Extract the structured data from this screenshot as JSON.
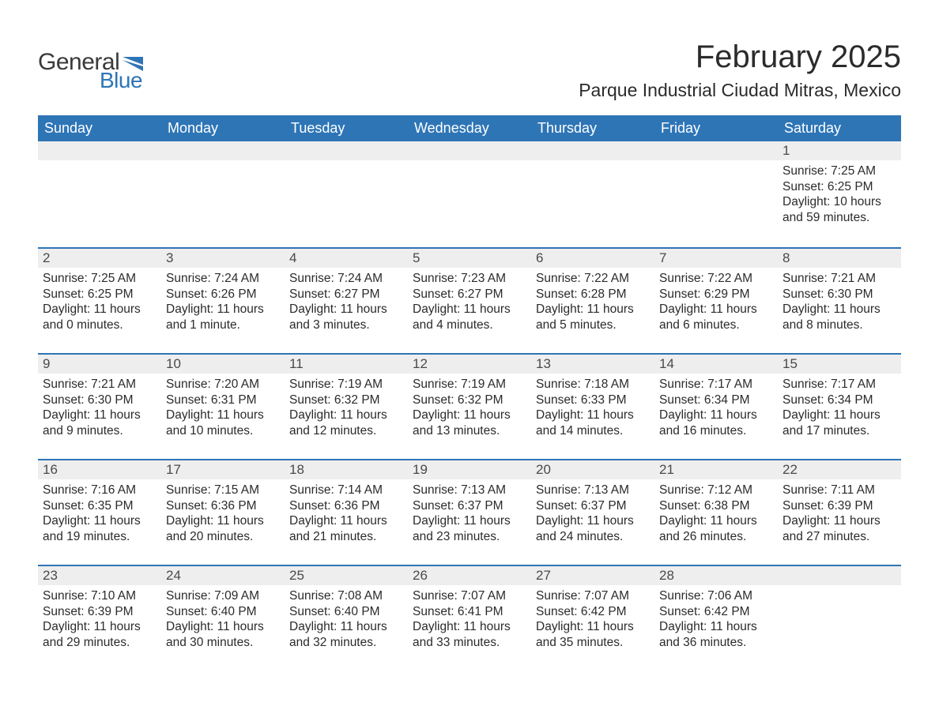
{
  "logo": {
    "text1": "General",
    "text2": "Blue",
    "text1_color": "#3a3a3a",
    "text2_color": "#2e75b6",
    "icon_color": "#2e75b6"
  },
  "header": {
    "month_title": "February 2025",
    "location": "Parque Industrial Ciudad Mitras, Mexico"
  },
  "colors": {
    "header_bg": "#2e75b6",
    "header_text": "#ffffff",
    "row_border": "#2e75b6",
    "daybar_bg": "#eeeeee",
    "text": "#2b2b2b",
    "background": "#ffffff"
  },
  "typography": {
    "title_fontsize": 40,
    "location_fontsize": 23,
    "weekday_fontsize": 18,
    "cell_fontsize": 15.5,
    "font_family": "Segoe UI"
  },
  "weekdays": [
    "Sunday",
    "Monday",
    "Tuesday",
    "Wednesday",
    "Thursday",
    "Friday",
    "Saturday"
  ],
  "weeks": [
    [
      null,
      null,
      null,
      null,
      null,
      null,
      {
        "day": "1",
        "sunrise": "Sunrise: 7:25 AM",
        "sunset": "Sunset: 6:25 PM",
        "daylight": "Daylight: 10 hours and 59 minutes."
      }
    ],
    [
      {
        "day": "2",
        "sunrise": "Sunrise: 7:25 AM",
        "sunset": "Sunset: 6:25 PM",
        "daylight": "Daylight: 11 hours and 0 minutes."
      },
      {
        "day": "3",
        "sunrise": "Sunrise: 7:24 AM",
        "sunset": "Sunset: 6:26 PM",
        "daylight": "Daylight: 11 hours and 1 minute."
      },
      {
        "day": "4",
        "sunrise": "Sunrise: 7:24 AM",
        "sunset": "Sunset: 6:27 PM",
        "daylight": "Daylight: 11 hours and 3 minutes."
      },
      {
        "day": "5",
        "sunrise": "Sunrise: 7:23 AM",
        "sunset": "Sunset: 6:27 PM",
        "daylight": "Daylight: 11 hours and 4 minutes."
      },
      {
        "day": "6",
        "sunrise": "Sunrise: 7:22 AM",
        "sunset": "Sunset: 6:28 PM",
        "daylight": "Daylight: 11 hours and 5 minutes."
      },
      {
        "day": "7",
        "sunrise": "Sunrise: 7:22 AM",
        "sunset": "Sunset: 6:29 PM",
        "daylight": "Daylight: 11 hours and 6 minutes."
      },
      {
        "day": "8",
        "sunrise": "Sunrise: 7:21 AM",
        "sunset": "Sunset: 6:30 PM",
        "daylight": "Daylight: 11 hours and 8 minutes."
      }
    ],
    [
      {
        "day": "9",
        "sunrise": "Sunrise: 7:21 AM",
        "sunset": "Sunset: 6:30 PM",
        "daylight": "Daylight: 11 hours and 9 minutes."
      },
      {
        "day": "10",
        "sunrise": "Sunrise: 7:20 AM",
        "sunset": "Sunset: 6:31 PM",
        "daylight": "Daylight: 11 hours and 10 minutes."
      },
      {
        "day": "11",
        "sunrise": "Sunrise: 7:19 AM",
        "sunset": "Sunset: 6:32 PM",
        "daylight": "Daylight: 11 hours and 12 minutes."
      },
      {
        "day": "12",
        "sunrise": "Sunrise: 7:19 AM",
        "sunset": "Sunset: 6:32 PM",
        "daylight": "Daylight: 11 hours and 13 minutes."
      },
      {
        "day": "13",
        "sunrise": "Sunrise: 7:18 AM",
        "sunset": "Sunset: 6:33 PM",
        "daylight": "Daylight: 11 hours and 14 minutes."
      },
      {
        "day": "14",
        "sunrise": "Sunrise: 7:17 AM",
        "sunset": "Sunset: 6:34 PM",
        "daylight": "Daylight: 11 hours and 16 minutes."
      },
      {
        "day": "15",
        "sunrise": "Sunrise: 7:17 AM",
        "sunset": "Sunset: 6:34 PM",
        "daylight": "Daylight: 11 hours and 17 minutes."
      }
    ],
    [
      {
        "day": "16",
        "sunrise": "Sunrise: 7:16 AM",
        "sunset": "Sunset: 6:35 PM",
        "daylight": "Daylight: 11 hours and 19 minutes."
      },
      {
        "day": "17",
        "sunrise": "Sunrise: 7:15 AM",
        "sunset": "Sunset: 6:36 PM",
        "daylight": "Daylight: 11 hours and 20 minutes."
      },
      {
        "day": "18",
        "sunrise": "Sunrise: 7:14 AM",
        "sunset": "Sunset: 6:36 PM",
        "daylight": "Daylight: 11 hours and 21 minutes."
      },
      {
        "day": "19",
        "sunrise": "Sunrise: 7:13 AM",
        "sunset": "Sunset: 6:37 PM",
        "daylight": "Daylight: 11 hours and 23 minutes."
      },
      {
        "day": "20",
        "sunrise": "Sunrise: 7:13 AM",
        "sunset": "Sunset: 6:37 PM",
        "daylight": "Daylight: 11 hours and 24 minutes."
      },
      {
        "day": "21",
        "sunrise": "Sunrise: 7:12 AM",
        "sunset": "Sunset: 6:38 PM",
        "daylight": "Daylight: 11 hours and 26 minutes."
      },
      {
        "day": "22",
        "sunrise": "Sunrise: 7:11 AM",
        "sunset": "Sunset: 6:39 PM",
        "daylight": "Daylight: 11 hours and 27 minutes."
      }
    ],
    [
      {
        "day": "23",
        "sunrise": "Sunrise: 7:10 AM",
        "sunset": "Sunset: 6:39 PM",
        "daylight": "Daylight: 11 hours and 29 minutes."
      },
      {
        "day": "24",
        "sunrise": "Sunrise: 7:09 AM",
        "sunset": "Sunset: 6:40 PM",
        "daylight": "Daylight: 11 hours and 30 minutes."
      },
      {
        "day": "25",
        "sunrise": "Sunrise: 7:08 AM",
        "sunset": "Sunset: 6:40 PM",
        "daylight": "Daylight: 11 hours and 32 minutes."
      },
      {
        "day": "26",
        "sunrise": "Sunrise: 7:07 AM",
        "sunset": "Sunset: 6:41 PM",
        "daylight": "Daylight: 11 hours and 33 minutes."
      },
      {
        "day": "27",
        "sunrise": "Sunrise: 7:07 AM",
        "sunset": "Sunset: 6:42 PM",
        "daylight": "Daylight: 11 hours and 35 minutes."
      },
      {
        "day": "28",
        "sunrise": "Sunrise: 7:06 AM",
        "sunset": "Sunset: 6:42 PM",
        "daylight": "Daylight: 11 hours and 36 minutes."
      },
      null
    ]
  ]
}
